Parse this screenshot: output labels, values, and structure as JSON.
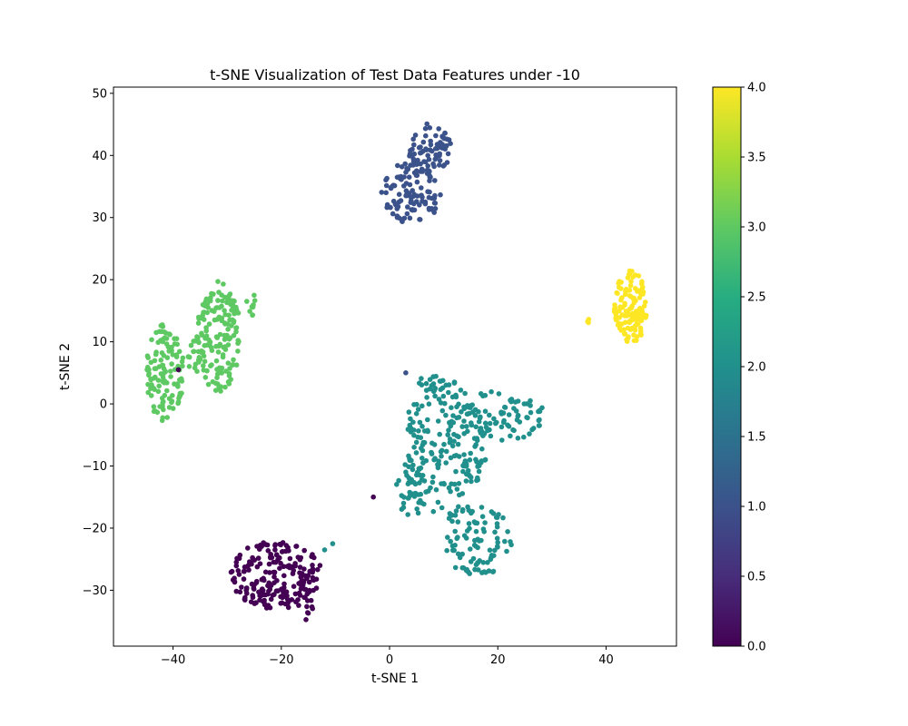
{
  "chart_data": {
    "type": "scatter",
    "title": "t-SNE Visualization of Test Data Features under -10",
    "xlabel": "t-SNE 1",
    "ylabel": "t-SNE 2",
    "xlim": [
      -51,
      53
    ],
    "ylim": [
      -39,
      51
    ],
    "xticks": [
      -40,
      -20,
      0,
      20,
      40
    ],
    "yticks": [
      -30,
      -20,
      -10,
      0,
      10,
      20,
      30,
      40,
      50
    ],
    "colorbar": {
      "colormap": "viridis",
      "min": 0.0,
      "max": 4.0,
      "ticks": [
        "0.0",
        "0.5",
        "1.0",
        "1.5",
        "2.0",
        "2.5",
        "3.0",
        "3.5",
        "4.0"
      ]
    },
    "grid": false,
    "clusters": [
      {
        "label_value": 0,
        "color": "#440154",
        "approx_count": 220,
        "regions": [
          {
            "cx": -21,
            "cy": -27.5,
            "rx": 8.5,
            "ry": 5.5
          },
          {
            "cx": -15.5,
            "cy": -31,
            "rx": 1.5,
            "ry": 4
          }
        ]
      },
      {
        "label_value": 1,
        "color": "#3b528b",
        "approx_count": 180,
        "regions": [
          {
            "cx": 4,
            "cy": 34,
            "rx": 5.5,
            "ry": 5
          },
          {
            "cx": 7.5,
            "cy": 41,
            "rx": 4,
            "ry": 4.5
          }
        ]
      },
      {
        "label_value": 2,
        "color": "#21908d",
        "approx_count": 420,
        "regions": [
          {
            "cx": 10,
            "cy": -7,
            "rx": 8,
            "ry": 11
          },
          {
            "cx": 20,
            "cy": -2,
            "rx": 9,
            "ry": 4
          },
          {
            "cx": 16,
            "cy": -22,
            "rx": 7,
            "ry": 6
          },
          {
            "cx": 4,
            "cy": -14,
            "rx": 3,
            "ry": 4
          },
          {
            "cx": 7,
            "cy": 3,
            "rx": 3,
            "ry": 2
          }
        ]
      },
      {
        "label_value": 3,
        "color": "#5ec962",
        "approx_count": 310,
        "regions": [
          {
            "cx": -41.5,
            "cy": 5,
            "rx": 3.5,
            "ry": 8
          },
          {
            "cx": -31.5,
            "cy": 11,
            "rx": 4,
            "ry": 9
          },
          {
            "cx": -36,
            "cy": 8,
            "rx": 1.5,
            "ry": 3
          },
          {
            "cx": -25.5,
            "cy": 16,
            "rx": 1,
            "ry": 2
          }
        ]
      },
      {
        "label_value": 4,
        "color": "#fde725",
        "approx_count": 130,
        "regions": [
          {
            "cx": 44.5,
            "cy": 15.5,
            "rx": 3,
            "ry": 6
          },
          {
            "cx": 37,
            "cy": 13.5,
            "rx": 0.6,
            "ry": 0.8
          }
        ]
      }
    ],
    "outliers": [
      {
        "x": -39,
        "y": 5.5,
        "label_value": 0
      },
      {
        "x": -3,
        "y": -15,
        "label_value": 0
      },
      {
        "x": 3,
        "y": 5,
        "label_value": 1
      },
      {
        "x": -10.5,
        "y": -22.5,
        "label_value": 2
      },
      {
        "x": -12,
        "y": -23.5,
        "label_value": 2
      }
    ]
  }
}
